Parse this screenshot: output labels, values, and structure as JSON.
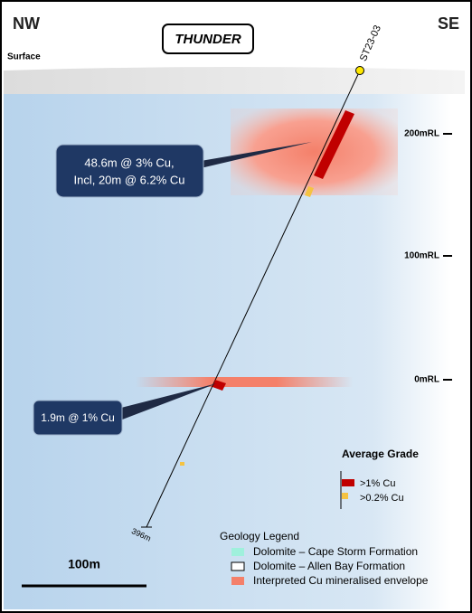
{
  "header": {
    "left": "NW",
    "right": "SE",
    "title": "THUNDER",
    "surface": "Surface"
  },
  "hole": {
    "name": "ST23-03",
    "depth": "396m"
  },
  "levels": [
    "200mRL",
    "100mRL",
    "0mRL"
  ],
  "callouts": [
    {
      "lines": [
        "48.6m @ 3% Cu,",
        "Incl, 20m @ 6.2% Cu"
      ]
    },
    {
      "lines": [
        "1.9m @ 1% Cu"
      ]
    }
  ],
  "grade_legend": {
    "title": "Average Grade",
    "items": [
      ">1% Cu",
      ">0.2% Cu"
    ]
  },
  "geology_legend": {
    "title": "Geology Legend",
    "items": [
      "Dolomite – Cape Storm Formation",
      "Dolomite – Allen Bay Formation",
      "Interpreted Cu mineralised envelope"
    ]
  },
  "scale": "100m"
}
